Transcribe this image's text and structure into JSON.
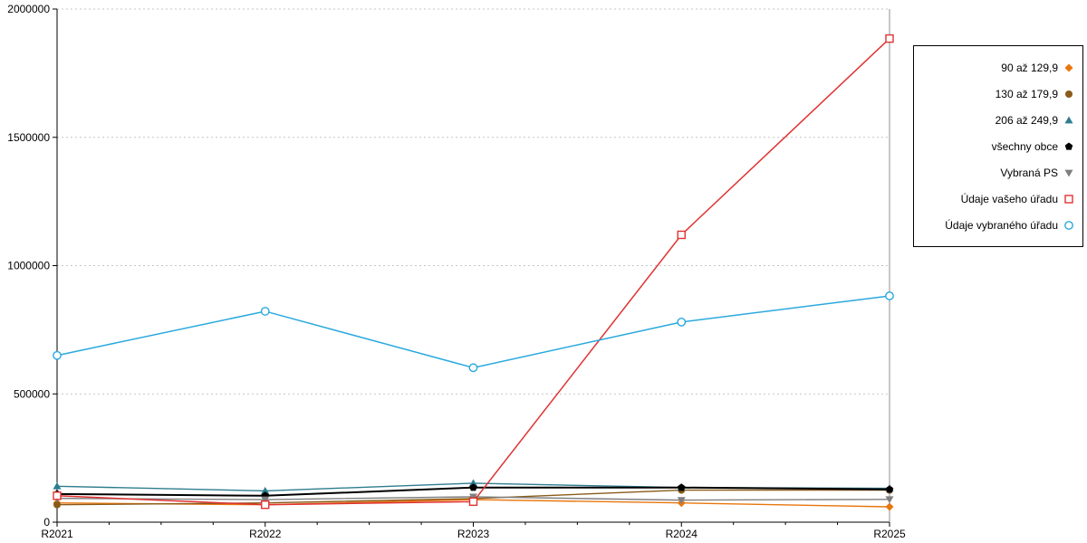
{
  "chart_data": {
    "type": "line",
    "title": "",
    "xlabel": "",
    "ylabel": "",
    "x": [
      "R2021",
      "R2022",
      "R2023",
      "R2024",
      "R2025"
    ],
    "ylim": [
      0,
      2000000
    ],
    "yticks": [
      0,
      500000,
      1000000,
      1500000,
      2000000
    ],
    "grid": true,
    "legend_position": "right",
    "series": [
      {
        "name": "90 až 129,9",
        "marker": "diamond",
        "color": "#E8760C",
        "line_width": 1.4,
        "values": [
          75000,
          68000,
          88000,
          75000,
          60000
        ]
      },
      {
        "name": "130 až 179,9",
        "marker": "circle",
        "color": "#8A5A19",
        "line_width": 1.4,
        "values": [
          68000,
          75000,
          92000,
          125000,
          125000
        ]
      },
      {
        "name": "206 až 249,9",
        "marker": "triangle-up",
        "color": "#2E7D8E",
        "line_width": 1.4,
        "values": [
          140000,
          122000,
          152000,
          135000,
          132000
        ]
      },
      {
        "name": "všechny obce",
        "marker": "pentagon",
        "color": "#000000",
        "line_width": 2.0,
        "values": [
          110000,
          103000,
          135000,
          135000,
          128000
        ]
      },
      {
        "name": "Vybraná PS",
        "marker": "triangle-down",
        "color": "#7F7F7F",
        "line_width": 1.4,
        "values": [
          93000,
          88000,
          99000,
          86000,
          89000
        ]
      },
      {
        "name": "Údaje vašeho úřadu",
        "marker": "square-open",
        "color": "#E03232",
        "line_width": 1.5,
        "values": [
          103000,
          68000,
          80000,
          1120000,
          1885000
        ]
      },
      {
        "name": "Údaje vybraného úřadu",
        "marker": "circle-open",
        "color": "#29A9DD",
        "line_width": 1.5,
        "values": [
          650000,
          822000,
          602000,
          780000,
          882000
        ]
      }
    ]
  }
}
